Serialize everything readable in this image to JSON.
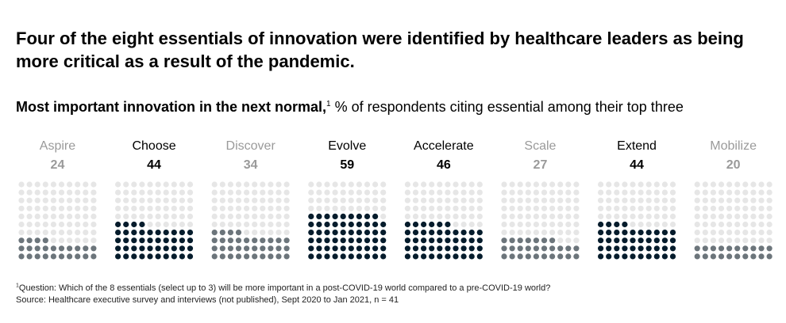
{
  "header": {
    "title": "Four of the eight essentials of innovation were identified by healthcare leaders as being more critical as a result of the pandemic.",
    "subtitle_bold": "Most important innovation in the next normal,",
    "subtitle_sup": "1",
    "subtitle_rest": " % of respondents citing essential among their top three"
  },
  "chart_data": {
    "type": "dot-matrix",
    "unit": "% of respondents citing essential among their top three",
    "dots_per_category": 100,
    "categories": [
      "Aspire",
      "Choose",
      "Discover",
      "Evolve",
      "Accelerate",
      "Scale",
      "Extend",
      "Mobilize"
    ],
    "values": [
      24,
      44,
      34,
      59,
      46,
      27,
      44,
      20
    ],
    "highlighted": [
      false,
      true,
      false,
      true,
      true,
      false,
      true,
      false
    ],
    "colors": {
      "highlighted": "#051c2c",
      "muted": "#6c757b",
      "empty": "#e6e6e6",
      "label_highlighted": "#000000",
      "label_muted": "#9a9a9a"
    }
  },
  "footnote": {
    "sup": "1",
    "question": "Question: Which of the 8 essentials (select up to 3) will be more important in a post-COVID-19 world compared to a pre-COVID-19 world?",
    "source": "Source: Healthcare executive survey and interviews (not published), Sept 2020 to Jan 2021, n = 41"
  }
}
